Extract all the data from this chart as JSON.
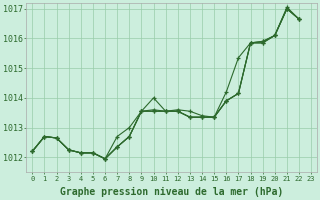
{
  "title": "Graphe pression niveau de la mer (hPa)",
  "bg_color": "#cceedd",
  "grid_color": "#bbddcc",
  "line_color": "#2d6a2d",
  "ylim": [
    1011.5,
    1017.2
  ],
  "yticks": [
    1012,
    1013,
    1014,
    1015,
    1016,
    1017
  ],
  "xlim": [
    -0.5,
    23.5
  ],
  "xticks": [
    0,
    1,
    2,
    3,
    4,
    5,
    6,
    7,
    8,
    9,
    10,
    11,
    12,
    13,
    14,
    15,
    16,
    17,
    18,
    19,
    20,
    21,
    22,
    23
  ],
  "curves": [
    [
      1012.2,
      1012.7,
      1012.65,
      1012.25,
      1012.15,
      1012.15,
      1011.95,
      1012.35,
      1012.7,
      1013.55,
      1013.55,
      1013.55,
      1013.55,
      1013.35,
      1013.35,
      1013.35,
      1013.9,
      1014.15,
      1015.85,
      1015.85,
      1016.1,
      1017.0,
      1016.65,
      null
    ],
    [
      1012.2,
      1012.7,
      1012.65,
      1012.25,
      1012.15,
      1012.15,
      1011.95,
      1012.35,
      1012.7,
      1013.55,
      1013.55,
      1013.55,
      1013.6,
      1013.55,
      1013.4,
      1013.35,
      1014.2,
      1015.35,
      1015.85,
      1015.85,
      1016.1,
      1017.05,
      1016.65,
      null
    ],
    [
      1012.2,
      1012.7,
      1012.65,
      1012.25,
      1012.15,
      1012.15,
      1011.95,
      1012.7,
      1013.0,
      1013.55,
      1013.6,
      1013.55,
      1013.55,
      1013.35,
      1013.35,
      1013.35,
      1013.9,
      1014.15,
      1015.85,
      1015.9,
      1016.1,
      1017.0,
      1016.65,
      null
    ],
    [
      1012.2,
      1012.7,
      1012.65,
      1012.25,
      1012.15,
      1012.15,
      1011.95,
      1012.35,
      1012.7,
      1013.55,
      1014.0,
      1013.55,
      1013.55,
      1013.35,
      1013.35,
      1013.35,
      1013.9,
      1014.15,
      1015.85,
      1015.9,
      1016.1,
      1017.0,
      1016.65,
      null
    ]
  ],
  "ylabel_fontsize": 6,
  "xlabel_fontsize": 5,
  "title_fontsize": 7
}
